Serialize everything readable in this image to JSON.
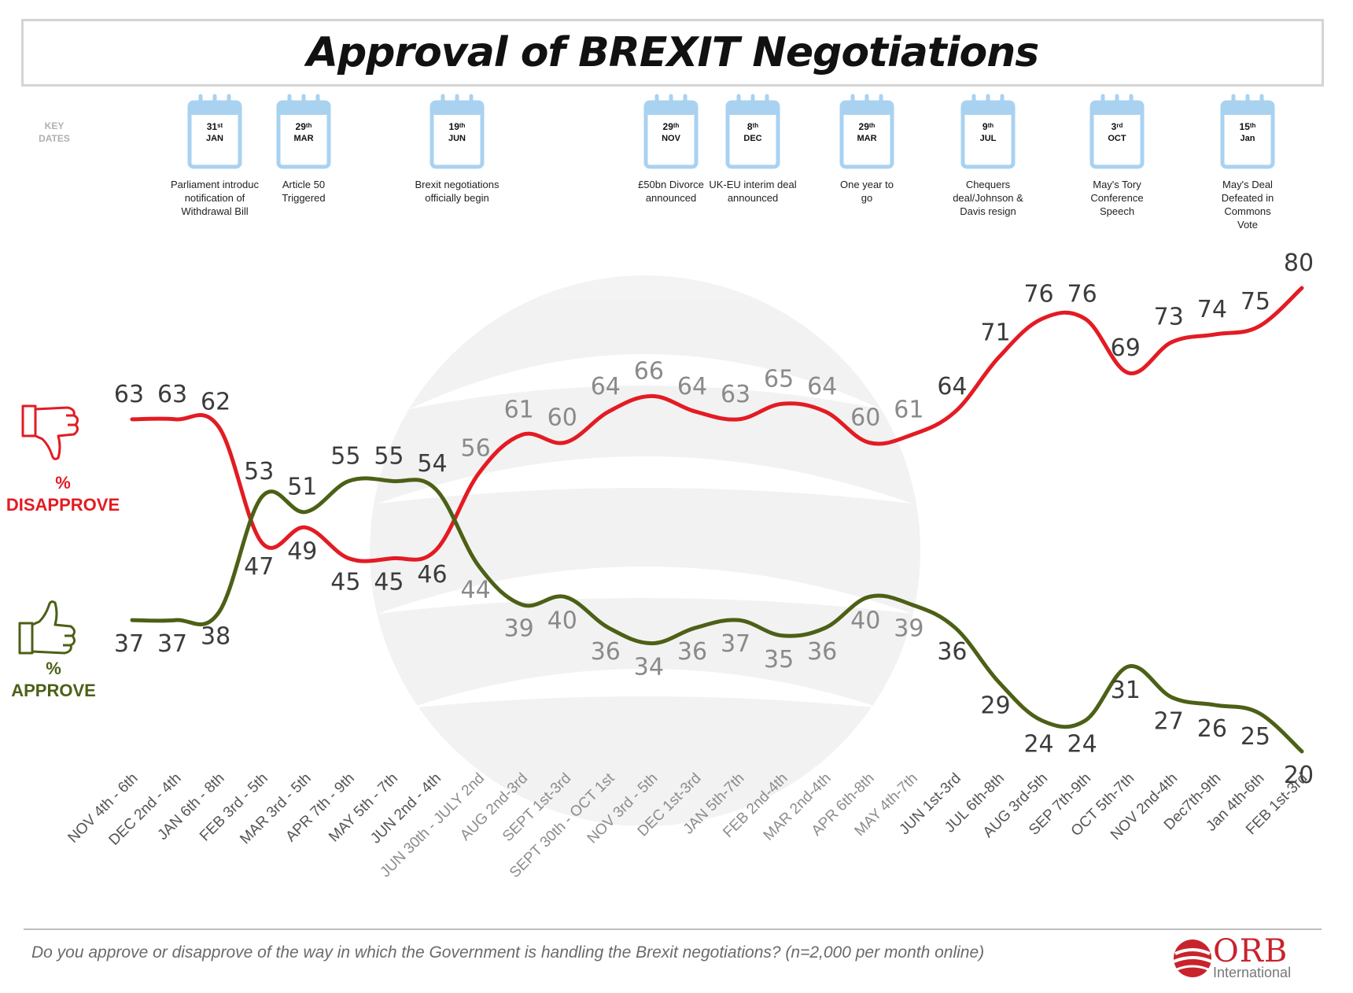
{
  "title": "Approval of BREXIT Negotiations",
  "key_dates_label": [
    "KEY",
    "DATES"
  ],
  "events": [
    {
      "day": "31",
      "sup": "st",
      "month": "JAN",
      "lines": [
        "Parliament introduc",
        "notification of",
        "Withdrawal Bill"
      ]
    },
    {
      "day": "29",
      "sup": "th",
      "month": "MAR",
      "lines": [
        "Article 50",
        "Triggered"
      ]
    },
    {
      "day": "19",
      "sup": "th",
      "month": "JUN",
      "lines": [
        "Brexit negotiations",
        "officially begin"
      ]
    },
    {
      "day": "29",
      "sup": "th",
      "month": "NOV",
      "lines": [
        "£50bn Divorce",
        "announced"
      ]
    },
    {
      "day": "8",
      "sup": "th",
      "month": "DEC",
      "lines": [
        "UK-EU interim deal",
        "announced"
      ]
    },
    {
      "day": "29",
      "sup": "th",
      "month": "MAR",
      "lines": [
        "One year to",
        "go"
      ]
    },
    {
      "day": "9",
      "sup": "th",
      "month": "JUL",
      "lines": [
        "Chequers",
        "deal/Johnson &",
        "Davis resign"
      ]
    },
    {
      "day": "3",
      "sup": "rd",
      "month": "OCT",
      "lines": [
        "May's Tory",
        "Conference",
        "Speech"
      ]
    },
    {
      "day": "15",
      "sup": "th",
      "month": "Jan",
      "lines": [
        "May's Deal",
        "Defeated in",
        "Commons",
        "Vote"
      ]
    }
  ],
  "legend": {
    "disapprove_pct": "%",
    "disapprove": "DISAPPROVE",
    "approve_pct": "%",
    "approve": "APPROVE"
  },
  "colors": {
    "disapprove": "#e31b23",
    "approve": "#4c6016",
    "label": "#3c3c3c",
    "calendar": "#a9d2f1"
  },
  "footer": {
    "question": "Do you approve or disapprove of the way in which the Government is handling the Brexit negotiations? (n=2,000 per month online)",
    "logo_name": "ORB",
    "logo_sub": "International"
  },
  "chart_data": {
    "type": "line",
    "title": "Approval of BREXIT Negotiations",
    "categories": [
      "NOV 4th - 6th",
      "DEC 2nd - 4th",
      "JAN 6th - 8th",
      "FEB 3rd - 5th",
      "MAR 3rd - 5th",
      "APR 7th - 9th",
      "MAY 5th - 7th",
      "JUN 2nd - 4th",
      "JUN 30th - JULY 2nd",
      "AUG 2nd-3rd",
      "SEPT 1st-3rd",
      "SEPT 30th - OCT 1st",
      "NOV 3rd - 5th",
      "DEC 1st-3rd",
      "JAN 5th-7th",
      "FEB 2nd-4th",
      "MAR 2nd-4th",
      "APR 6th-8th",
      "MAY 4th-7th",
      "JUN 1st-3rd",
      "JUL 6th-8th",
      "AUG 3rd-5th",
      "SEP 7th-9th",
      "OCT 5th-7th",
      "NOV 2nd-4th",
      "Dec7th-9th",
      "Jan 4th-6th",
      "FEB 1st-3rd"
    ],
    "series": [
      {
        "name": "DISAPPROVE",
        "values": [
          63,
          63,
          62,
          47,
          49,
          45,
          45,
          46,
          56,
          61,
          60,
          64,
          66,
          64,
          63,
          65,
          64,
          60,
          61,
          64,
          71,
          76,
          76,
          69,
          73,
          74,
          75,
          80
        ]
      },
      {
        "name": "APPROVE",
        "values": [
          37,
          37,
          38,
          53,
          51,
          55,
          55,
          54,
          44,
          39,
          40,
          36,
          34,
          36,
          37,
          35,
          36,
          40,
          39,
          36,
          29,
          24,
          24,
          31,
          27,
          26,
          25,
          20
        ]
      }
    ],
    "ylim": [
      20,
      80
    ]
  }
}
